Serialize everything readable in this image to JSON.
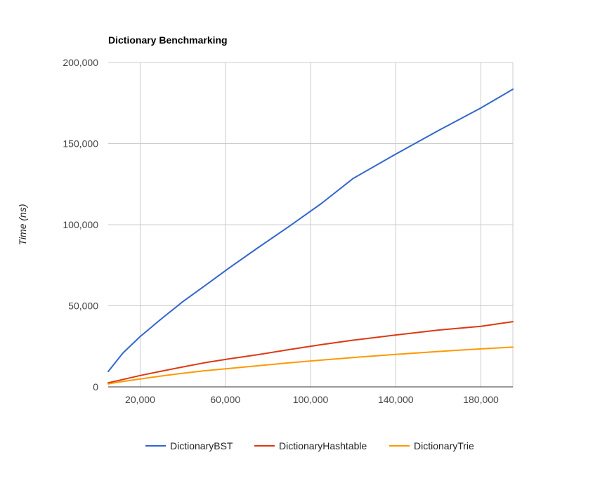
{
  "chart_data": {
    "type": "line",
    "title": "Dictionary Benchmarking",
    "xlabel": "",
    "ylabel": "Time (ns)",
    "xlim": [
      5000,
      195000
    ],
    "ylim": [
      0,
      200000
    ],
    "x_ticks": [
      20000,
      60000,
      100000,
      140000,
      180000
    ],
    "x_tick_labels": [
      "20,000",
      "60,000",
      "100,000",
      "140,000",
      "180,000"
    ],
    "y_ticks": [
      0,
      50000,
      100000,
      150000,
      200000
    ],
    "y_tick_labels": [
      "0",
      "50,000",
      "100,000",
      "150,000",
      "200,000"
    ],
    "grid": true,
    "legend_position": "bottom",
    "series": [
      {
        "name": "DictionaryBST",
        "color": "#3366cc",
        "x": [
          5000,
          12000,
          20000,
          30000,
          40000,
          50000,
          62000,
          75000,
          90000,
          105000,
          120000,
          140000,
          160000,
          180000,
          195000
        ],
        "y": [
          9500,
          21000,
          31000,
          42000,
          52500,
          62000,
          73500,
          85500,
          99000,
          113000,
          128500,
          143500,
          158000,
          172000,
          183500
        ]
      },
      {
        "name": "DictionaryHashtable",
        "color": "#dc3912",
        "x": [
          5000,
          10000,
          20000,
          30000,
          40000,
          50000,
          62000,
          75000,
          90000,
          105000,
          120000,
          140000,
          160000,
          180000,
          195000
        ],
        "y": [
          2500,
          4000,
          7000,
          9700,
          12300,
          14800,
          17300,
          19800,
          23000,
          26000,
          28800,
          32000,
          35000,
          37300,
          40200
        ]
      },
      {
        "name": "DictionaryTrie",
        "color": "#ff9900",
        "x": [
          5000,
          10000,
          20000,
          30000,
          40000,
          50000,
          62000,
          75000,
          90000,
          105000,
          120000,
          140000,
          160000,
          180000,
          195000
        ],
        "y": [
          1800,
          3000,
          4900,
          6700,
          8400,
          9900,
          11400,
          13000,
          14800,
          16500,
          18100,
          20000,
          21800,
          23400,
          24500
        ]
      }
    ]
  }
}
